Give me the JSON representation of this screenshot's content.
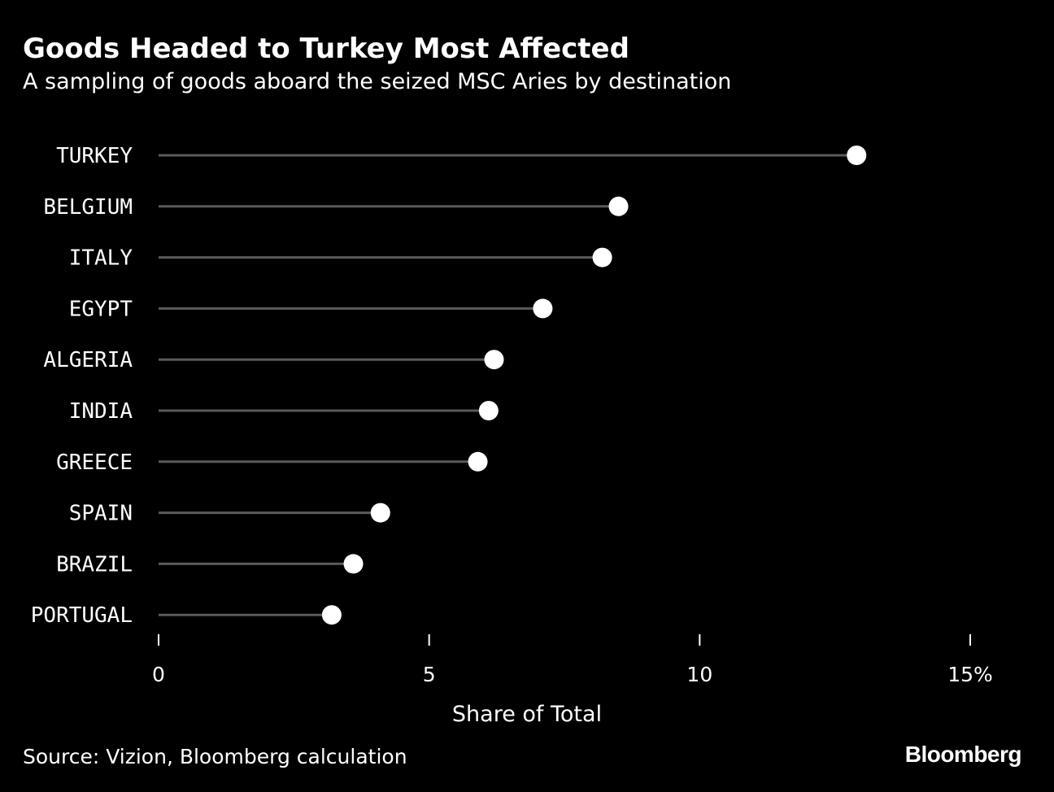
{
  "header": {
    "title": "Goods Headed to Turkey Most Affected",
    "subtitle": "A sampling of goods aboard the seized MSC Aries by destination"
  },
  "footer": {
    "source": "Source: Vizion, Bloomberg calculation",
    "brand": "Bloomberg"
  },
  "colors": {
    "background": "#000000",
    "text": "#ffffff",
    "stem": "#5a5a5a",
    "dot": "#ffffff",
    "tick": "#ffffff"
  },
  "chart_data": {
    "type": "lollipop",
    "title": "Goods Headed to Turkey Most Affected",
    "subtitle": "A sampling of goods aboard the seized MSC Aries by destination",
    "categories": [
      "TURKEY",
      "BELGIUM",
      "ITALY",
      "EGYPT",
      "ALGERIA",
      "INDIA",
      "GREECE",
      "SPAIN",
      "BRAZIL",
      "PORTUGAL"
    ],
    "values": [
      12.9,
      8.5,
      8.2,
      7.1,
      6.2,
      6.1,
      5.9,
      4.1,
      3.6,
      3.2
    ],
    "xlabel": "Share of Total",
    "ylabel": "",
    "xlim": [
      0,
      15
    ],
    "xticks": [
      0,
      5,
      10,
      15
    ],
    "xtick_labels": [
      "0",
      "5",
      "10",
      "15%"
    ],
    "grid": false,
    "legend": "none"
  }
}
